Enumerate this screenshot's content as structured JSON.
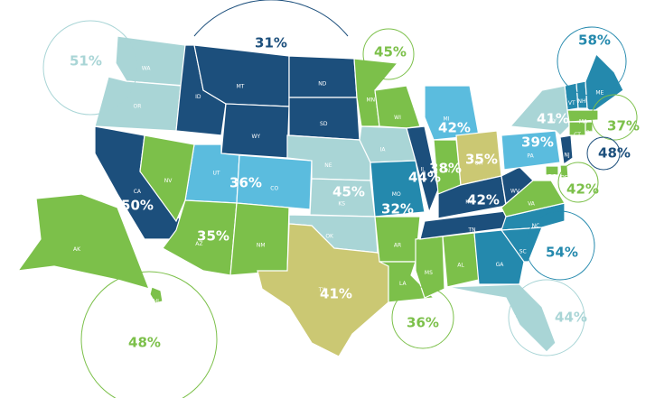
{
  "map": {
    "regions": [
      {
        "label": "51%",
        "color": "#a9d5d6",
        "states": [
          "WA",
          "OR"
        ]
      },
      {
        "label": "31%",
        "color": "#1c4f7c",
        "states": [
          "ID",
          "MT",
          "WY",
          "ND",
          "SD"
        ]
      },
      {
        "label": "45%",
        "color": "#7cc04a",
        "states": [
          "MN",
          "WI"
        ]
      },
      {
        "label": "42%",
        "color": "#5bbcde",
        "states": [
          "MI"
        ]
      },
      {
        "label": "36%",
        "color": "#5bbcde",
        "states": [
          "UT",
          "CO"
        ]
      },
      {
        "label": "50%",
        "color": "#1c4f7c",
        "states": [
          "CA"
        ]
      },
      {
        "label": "35%",
        "color": "#7cc04a",
        "states": [
          "NV",
          "AZ",
          "NM"
        ]
      },
      {
        "label": "45%",
        "color": "#a9d5d6",
        "states": [
          "NE",
          "KS",
          "OK",
          "IA"
        ]
      },
      {
        "label": "41%",
        "color": "#cbc873",
        "states": [
          "TX"
        ]
      },
      {
        "label": "32%",
        "color": "#2489ad",
        "states": [
          "MO"
        ]
      },
      {
        "label": "36%",
        "color": "#7cc04a",
        "states": [
          "AR",
          "LA",
          "MS",
          "AL"
        ]
      },
      {
        "label": "44%",
        "color": "#1c4f7c",
        "states": [
          "IL"
        ]
      },
      {
        "label": "38%",
        "color": "#7cc04a",
        "states": [
          "IN"
        ]
      },
      {
        "label": "35%",
        "color": "#cbc873",
        "states": [
          "OH"
        ]
      },
      {
        "label": "42%",
        "color": "#1c4f7c",
        "states": [
          "KY",
          "TN",
          "WV"
        ]
      },
      {
        "label": "39%",
        "color": "#5bbcde",
        "states": [
          "PA"
        ]
      },
      {
        "label": "54%",
        "color": "#2489ad",
        "states": [
          "NC",
          "SC",
          "GA"
        ]
      },
      {
        "label": "44%",
        "color": "#a9d5d6",
        "states": [
          "FL"
        ]
      },
      {
        "label": "48%",
        "color": "#7cc04a",
        "states": [
          "AK",
          "HI"
        ]
      },
      {
        "label": "58%",
        "color": "#2489ad",
        "states": [
          "VT",
          "NH",
          "ME"
        ]
      },
      {
        "label": "41%",
        "color": "#a9d5d6",
        "states": [
          "NY"
        ]
      },
      {
        "label": "37%",
        "color": "#7cc04a",
        "states": [
          "MA",
          "CT",
          "RI"
        ]
      },
      {
        "label": "48%",
        "color": "#1c4f7c",
        "states": [
          "NJ"
        ]
      },
      {
        "label": "42%",
        "color": "#7cc04a",
        "states": [
          "VA",
          "DE",
          "DC"
        ]
      }
    ]
  }
}
